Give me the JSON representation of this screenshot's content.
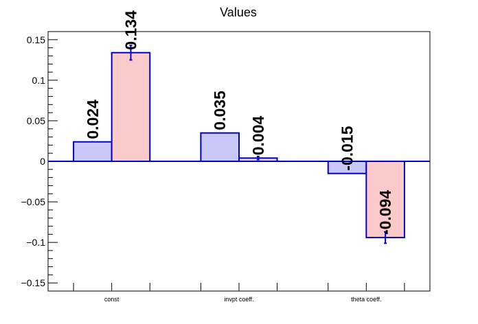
{
  "chart_data": {
    "type": "bar",
    "title": "Values",
    "xlabel": "",
    "ylabel": "",
    "categories": [
      "const",
      "invpt coeff.",
      "theta coeff."
    ],
    "series": [
      {
        "values": [
          0.024,
          0.035,
          -0.015
        ],
        "errors": [
          0,
          0,
          0
        ],
        "labels": [
          "0.024",
          "0.035",
          "-0.015"
        ],
        "fill": "#c8c8fa",
        "stroke": "#0000cc"
      },
      {
        "values": [
          0.134,
          0.004,
          -0.094
        ],
        "errors": [
          0.009,
          0.002,
          0.007
        ],
        "labels": [
          "0.134",
          "0.004",
          "-0.094"
        ],
        "fill": "#fccaca",
        "stroke": "#0000cc"
      }
    ],
    "ylim": [
      -0.16,
      0.16
    ],
    "yticks": [
      0.15,
      0.1,
      0.05,
      0,
      -0.05,
      -0.1,
      -0.15
    ],
    "ytick_labels": [
      "0.15",
      "0.1",
      "0.05",
      "0",
      "−0.05",
      "−0.1",
      "−0.15"
    ],
    "grid": false,
    "legend": "none"
  }
}
